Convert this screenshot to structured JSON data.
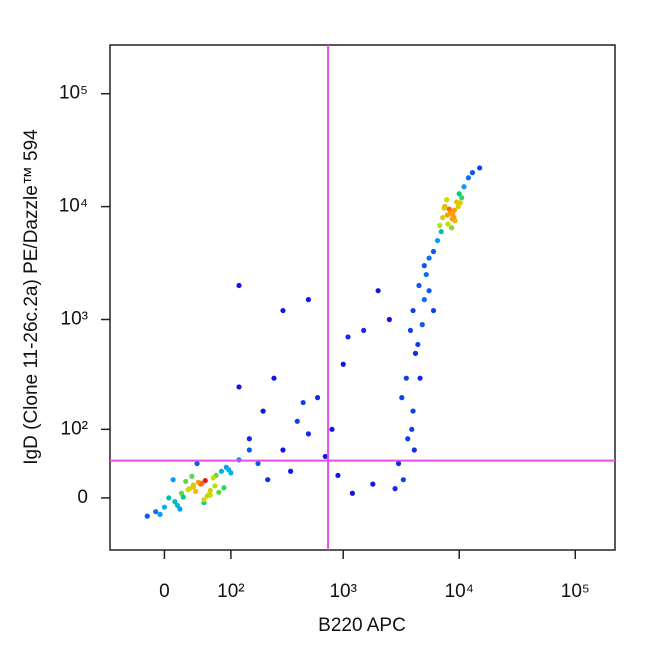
{
  "chart_data": {
    "type": "scatter",
    "xlabel": "B220 APC",
    "ylabel": "IgD (Clone 11-26c.2a) PE/Dazzle™ 594",
    "scale": "biexponential",
    "xlim": [
      -75,
      220000
    ],
    "ylim": [
      -67,
      270000
    ],
    "xticks": [
      0,
      {
        "value": 100,
        "label": "10²"
      },
      {
        "value": 1000,
        "label": "10³"
      },
      {
        "value": 10000,
        "label": "10⁴"
      },
      {
        "value": 100000,
        "label": "10⁵"
      }
    ],
    "yticks": [
      0,
      {
        "value": 100,
        "label": "10²"
      },
      {
        "value": 1000,
        "label": "10³"
      },
      {
        "value": 10000,
        "label": "10⁴"
      },
      {
        "value": 100000,
        "label": "10⁵"
      }
    ],
    "gates": {
      "x": 740,
      "y": 44,
      "color": "#e64ee6"
    },
    "x": [
      20,
      35,
      50,
      10,
      60,
      80,
      -10,
      5,
      45,
      70,
      30,
      15,
      90,
      25,
      55,
      40,
      65,
      0,
      100,
      120,
      -20,
      75,
      150,
      35,
      50,
      28,
      42,
      60,
      18,
      85,
      38,
      52,
      22,
      68,
      12,
      47,
      33,
      58,
      -5,
      95,
      8500,
      9000,
      7500,
      8000,
      9500,
      7000,
      10000,
      8800,
      6500,
      11000,
      12000,
      6000,
      8200,
      9200,
      7800,
      13000,
      5500,
      8600,
      9800,
      7200,
      15000,
      5000,
      10500,
      8400,
      6800,
      9100,
      7900,
      8700,
      10200,
      7400,
      4500,
      4000,
      5000,
      3800,
      4200,
      3500,
      4800,
      3200,
      4000,
      3600,
      5200,
      4400,
      3900,
      5500,
      3000,
      4600,
      2500,
      2000,
      1500,
      6000,
      4100,
      3300,
      2800,
      1800,
      1200,
      150,
      200,
      300,
      400,
      250,
      500,
      180,
      600,
      350,
      120,
      800,
      1000,
      700,
      450,
      220,
      900,
      300,
      120,
      500,
      1100
    ],
    "y": [
      5,
      12,
      -5,
      20,
      8,
      30,
      -15,
      0,
      15,
      25,
      10,
      -8,
      35,
      18,
      2,
      40,
      22,
      -10,
      28,
      45,
      -20,
      6,
      60,
      14,
      -2,
      9,
      17,
      3,
      -12,
      11,
      7,
      19,
      1,
      13,
      -4,
      16,
      24,
      4,
      -18,
      32,
      9000,
      8000,
      10000,
      7000,
      11000,
      6000,
      13000,
      8500,
      5000,
      15000,
      18000,
      4000,
      9500,
      7500,
      11500,
      20000,
      3500,
      6500,
      10000,
      8000,
      22000,
      3000,
      12000,
      8800,
      6800,
      9300,
      8400,
      7800,
      10800,
      9700,
      2000,
      1200,
      1500,
      800,
      500,
      300,
      900,
      200,
      150,
      80,
      2500,
      600,
      100,
      1800,
      40,
      300,
      1000,
      1800,
      800,
      1200,
      60,
      20,
      10,
      15,
      5,
      80,
      150,
      60,
      120,
      300,
      90,
      40,
      200,
      30,
      250,
      100,
      400,
      50,
      180,
      20,
      25,
      1200,
      2000,
      1500,
      700
    ]
  }
}
